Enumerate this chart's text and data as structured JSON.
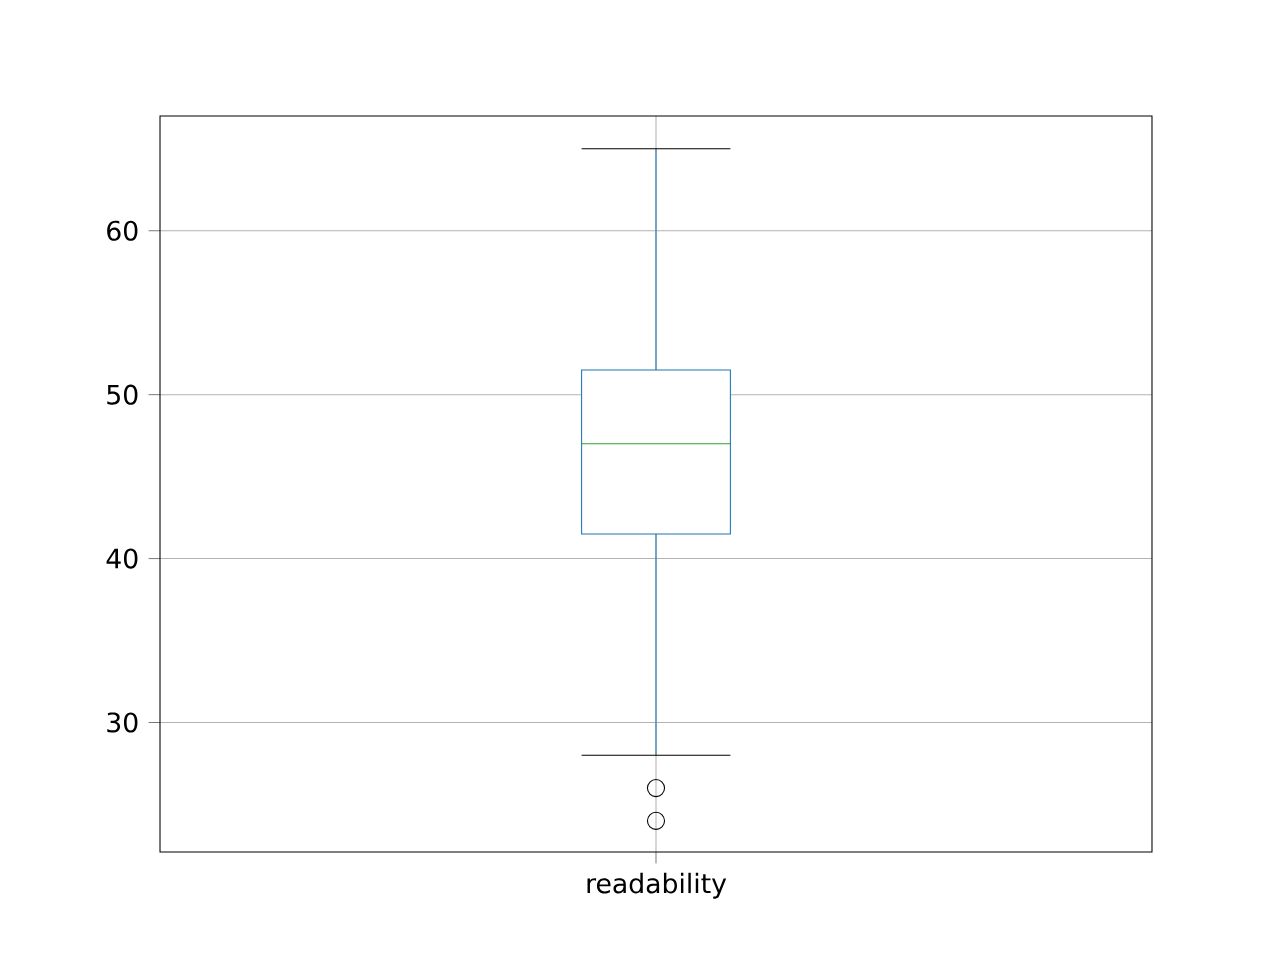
{
  "chart_data": {
    "type": "box",
    "categories": [
      "readability"
    ],
    "series": [
      {
        "color": "#1f77b4",
        "boxes": [
          {
            "low": 28,
            "q1": 41.5,
            "median": 47,
            "q3": 51.5,
            "high": 65,
            "outliers": [
              26,
              24
            ]
          }
        ]
      }
    ],
    "ylim": [
      22.1,
      67.0
    ],
    "yticks": [
      30,
      40,
      50,
      60
    ],
    "grid": true,
    "marker": "circle"
  }
}
